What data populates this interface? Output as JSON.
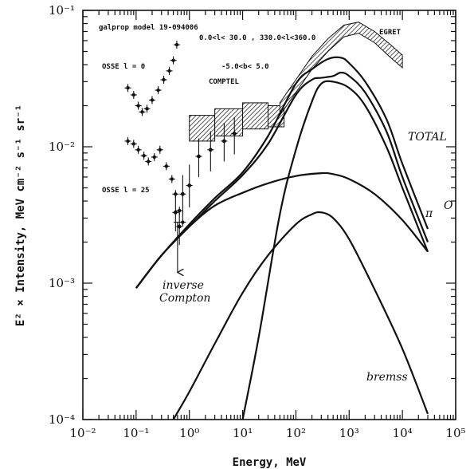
{
  "chart_data": {
    "type": "line",
    "title": "",
    "xlabel": "Energy, MeV",
    "ylabel": "E² × Intensity, MeV cm⁻² s⁻¹ sr⁻¹",
    "xscale": "log",
    "yscale": "log",
    "xlim": [
      0.01,
      100000
    ],
    "ylim": [
      0.0001,
      0.1
    ],
    "x_tick_labels": [
      "10⁻²",
      "10⁻¹",
      "10⁰",
      "10¹",
      "10²",
      "10³",
      "10⁴",
      "10⁵"
    ],
    "y_tick_labels": [
      "10⁻⁴",
      "10⁻³",
      "10⁻²",
      "10⁻¹"
    ],
    "grid": false,
    "annotations": {
      "model": "galprop model 19-094006",
      "region": "0.0<l< 30.0 , 330.0<l<360.0",
      "latitude": "-5.0<b< 5.0",
      "osse_top": "OSSE l = 0",
      "osse_bottom": "OSSE l = 25",
      "comptel": "COMPTEL",
      "egret": "EGRET",
      "total": "TOTAL",
      "pi0_o": "O",
      "pi0_pi": "π",
      "ic_line1": "inverse",
      "ic_line2": "Compton",
      "brems": "bremss"
    },
    "series": [
      {
        "name": "TOTAL",
        "x": [
          0.1,
          0.3,
          1,
          3,
          10,
          30,
          100,
          200,
          400,
          700,
          1000,
          2000,
          5000,
          10000,
          30000
        ],
        "values": [
          0.00092,
          0.0016,
          0.0027,
          0.0042,
          0.0065,
          0.012,
          0.029,
          0.037,
          0.044,
          0.045,
          0.041,
          0.03,
          0.016,
          0.0075,
          0.0025
        ]
      },
      {
        "name": "",
        "x": [
          0.1,
          0.3,
          1,
          3,
          10,
          30,
          100,
          200,
          300,
          500,
          700,
          1000,
          2000,
          5000,
          10000,
          30000
        ],
        "values": [
          0.00092,
          0.0016,
          0.0026,
          0.004,
          0.0062,
          0.0105,
          0.024,
          0.031,
          0.032,
          0.033,
          0.035,
          0.033,
          0.025,
          0.013,
          0.006,
          0.002
        ]
      },
      {
        "name": "π⁰",
        "x": [
          10,
          20,
          50,
          100,
          200,
          300,
          500,
          1000,
          2000,
          5000,
          10000,
          30000
        ],
        "values": [
          0.0001,
          0.0004,
          0.0032,
          0.0095,
          0.0215,
          0.029,
          0.03,
          0.027,
          0.02,
          0.01,
          0.005,
          0.0017
        ]
      },
      {
        "name": "inverse Compton",
        "x": [
          0.1,
          0.3,
          1,
          3,
          10,
          30,
          100,
          300,
          500,
          1000,
          3000,
          10000,
          30000
        ],
        "values": [
          0.00092,
          0.0016,
          0.0026,
          0.0037,
          0.0046,
          0.0054,
          0.0061,
          0.0064,
          0.0063,
          0.0058,
          0.0045,
          0.0029,
          0.0017
        ]
      },
      {
        "name": "bremss",
        "x": [
          0.5,
          1,
          3,
          10,
          30,
          100,
          200,
          300,
          500,
          1000,
          3000,
          10000,
          30000
        ],
        "values": [
          0.0001,
          0.00016,
          0.00036,
          0.00085,
          0.0016,
          0.0027,
          0.0032,
          0.0033,
          0.003,
          0.0021,
          0.0009,
          0.00033,
          0.00011
        ]
      }
    ],
    "osse_top_points": [
      {
        "x": 0.07,
        "y": 0.027
      },
      {
        "x": 0.09,
        "y": 0.024
      },
      {
        "x": 0.11,
        "y": 0.02
      },
      {
        "x": 0.13,
        "y": 0.018
      },
      {
        "x": 0.16,
        "y": 0.019
      },
      {
        "x": 0.2,
        "y": 0.022
      },
      {
        "x": 0.26,
        "y": 0.026
      },
      {
        "x": 0.33,
        "y": 0.031
      },
      {
        "x": 0.42,
        "y": 0.036
      },
      {
        "x": 0.5,
        "y": 0.043
      },
      {
        "x": 0.58,
        "y": 0.056
      }
    ],
    "osse_bottom_points": [
      {
        "x": 0.07,
        "y": 0.011
      },
      {
        "x": 0.09,
        "y": 0.0105
      },
      {
        "x": 0.11,
        "y": 0.0095
      },
      {
        "x": 0.14,
        "y": 0.0086
      },
      {
        "x": 0.17,
        "y": 0.0078
      },
      {
        "x": 0.22,
        "y": 0.0084
      },
      {
        "x": 0.28,
        "y": 0.0095
      },
      {
        "x": 0.37,
        "y": 0.0072
      },
      {
        "x": 0.47,
        "y": 0.0058
      },
      {
        "x": 0.55,
        "y": 0.0045
      },
      {
        "x": 0.65,
        "y": 0.0034
      },
      {
        "x": 0.75,
        "y": 0.0028
      }
    ],
    "errorbar_points": [
      {
        "x": 0.55,
        "y": 0.0033,
        "lo": 0.0024,
        "hi": 0.0045
      },
      {
        "x": 0.65,
        "y": 0.0026,
        "lo": 0.0019,
        "hi": 0.0033
      },
      {
        "x": 0.75,
        "y": 0.0045,
        "lo": 0.003,
        "hi": 0.0062
      },
      {
        "x": 1.0,
        "y": 0.0052,
        "lo": 0.0036,
        "hi": 0.0074
      },
      {
        "x": 1.5,
        "y": 0.0085,
        "lo": 0.006,
        "hi": 0.0115
      },
      {
        "x": 2.5,
        "y": 0.0095,
        "lo": 0.0066,
        "hi": 0.013
      },
      {
        "x": 4.5,
        "y": 0.011,
        "lo": 0.0078,
        "hi": 0.015
      },
      {
        "x": 7.0,
        "y": 0.0125,
        "lo": 0.0088,
        "hi": 0.0165
      }
    ],
    "upper_limit": {
      "x": 0.6,
      "y": 0.0028,
      "to": 0.0012
    },
    "comptel_boxes": [
      {
        "x1": 1,
        "x2": 3,
        "y1": 0.011,
        "y2": 0.017
      },
      {
        "x1": 3,
        "x2": 10,
        "y1": 0.012,
        "y2": 0.019
      },
      {
        "x1": 10,
        "x2": 30,
        "y1": 0.0135,
        "y2": 0.021
      },
      {
        "x1": 30,
        "x2": 60,
        "y1": 0.014,
        "y2": 0.02
      }
    ],
    "egret_band": {
      "x": [
        50,
        100,
        200,
        400,
        800,
        1500,
        3000,
        6000,
        10000
      ],
      "lo": [
        0.017,
        0.025,
        0.037,
        0.05,
        0.064,
        0.068,
        0.058,
        0.045,
        0.038
      ],
      "hi": [
        0.021,
        0.031,
        0.046,
        0.062,
        0.078,
        0.082,
        0.07,
        0.056,
        0.047
      ]
    }
  }
}
